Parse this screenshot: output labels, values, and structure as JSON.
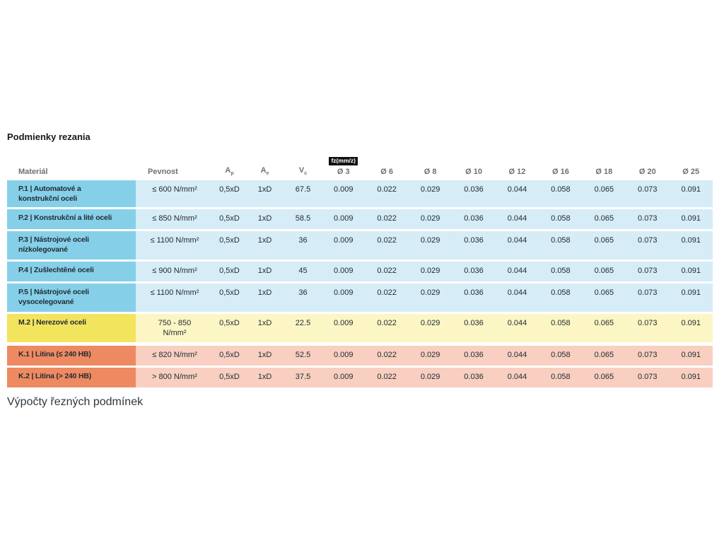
{
  "title": "Podmienky rezania",
  "footer": "Výpočty řezných podmínek",
  "colors": {
    "blue_dark": "#85d0e8",
    "blue_light": "#d6ecf7",
    "yellow_dark": "#f3e45e",
    "yellow_light": "#fcf6c4",
    "orange_dark": "#ee8a61",
    "orange_light": "#f8cfc0",
    "badge_bg": "#101010",
    "badge_text": "#ffffff",
    "header_text": "#6b7176",
    "body_text": "#222c33",
    "title_text": "#191919",
    "footer_text": "#30373c"
  },
  "table": {
    "headers": {
      "material": "Materiál",
      "pevnost": "Pevnost",
      "ap_base": "A",
      "ap_sub": "p",
      "ae_base": "A",
      "ae_sub": "e",
      "vc_base": "V",
      "vc_sub": "c",
      "fz_badge": "fz(mm/z)",
      "d": [
        "Ø 3",
        "Ø 6",
        "Ø 8",
        "Ø 10",
        "Ø 12",
        "Ø 16",
        "Ø 18",
        "Ø 20",
        "Ø 25"
      ]
    },
    "rows": [
      {
        "material": "P.1 | Automatové a\nkonstrukční oceli",
        "pevnost": "≤ 600 N/mm²",
        "ap": "0,5xD",
        "ae": "1xD",
        "vc": "67.5",
        "group": "P",
        "fz": [
          "0.009",
          "0.022",
          "0.029",
          "0.036",
          "0.044",
          "0.058",
          "0.065",
          "0.073",
          "0.091"
        ]
      },
      {
        "material": "P.2 | Konstrukční a lité oceli",
        "pevnost": "≤ 850 N/mm²",
        "ap": "0,5xD",
        "ae": "1xD",
        "vc": "58.5",
        "group": "P",
        "fz": [
          "0.009",
          "0.022",
          "0.029",
          "0.036",
          "0.044",
          "0.058",
          "0.065",
          "0.073",
          "0.091"
        ]
      },
      {
        "material": "P.3 | Nástrojové oceli\nnízkolegované",
        "pevnost": "≤ 1100 N/mm²",
        "ap": "0,5xD",
        "ae": "1xD",
        "vc": "36",
        "group": "P",
        "fz": [
          "0.009",
          "0.022",
          "0.029",
          "0.036",
          "0.044",
          "0.058",
          "0.065",
          "0.073",
          "0.091"
        ]
      },
      {
        "material": "P.4 | Zušlechtěné oceli",
        "pevnost": "≤ 900 N/mm²",
        "ap": "0,5xD",
        "ae": "1xD",
        "vc": "45",
        "group": "P",
        "fz": [
          "0.009",
          "0.022",
          "0.029",
          "0.036",
          "0.044",
          "0.058",
          "0.065",
          "0.073",
          "0.091"
        ]
      },
      {
        "material": "P.5 | Nástrojové oceli\nvysocelegované",
        "pevnost": "≤ 1100 N/mm²",
        "ap": "0,5xD",
        "ae": "1xD",
        "vc": "36",
        "group": "P",
        "fz": [
          "0.009",
          "0.022",
          "0.029",
          "0.036",
          "0.044",
          "0.058",
          "0.065",
          "0.073",
          "0.091"
        ]
      },
      {
        "material": "M.2 | Nerezové oceli",
        "pevnost": "750 - 850\nN/mm²",
        "ap": "0,5xD",
        "ae": "1xD",
        "vc": "22.5",
        "group": "M",
        "fz": [
          "0.009",
          "0.022",
          "0.029",
          "0.036",
          "0.044",
          "0.058",
          "0.065",
          "0.073",
          "0.091"
        ]
      },
      {
        "material": "K.1 | Litina (≤ 240 HB)",
        "pevnost": "≤ 820 N/mm²",
        "ap": "0,5xD",
        "ae": "1xD",
        "vc": "52.5",
        "group": "K",
        "fz": [
          "0.009",
          "0.022",
          "0.029",
          "0.036",
          "0.044",
          "0.058",
          "0.065",
          "0.073",
          "0.091"
        ]
      },
      {
        "material": "K.2 | Litina (> 240 HB)",
        "pevnost": "> 800 N/mm²",
        "ap": "0,5xD",
        "ae": "1xD",
        "vc": "37.5",
        "group": "K",
        "fz": [
          "0.009",
          "0.022",
          "0.029",
          "0.036",
          "0.044",
          "0.058",
          "0.065",
          "0.073",
          "0.091"
        ]
      }
    ]
  }
}
